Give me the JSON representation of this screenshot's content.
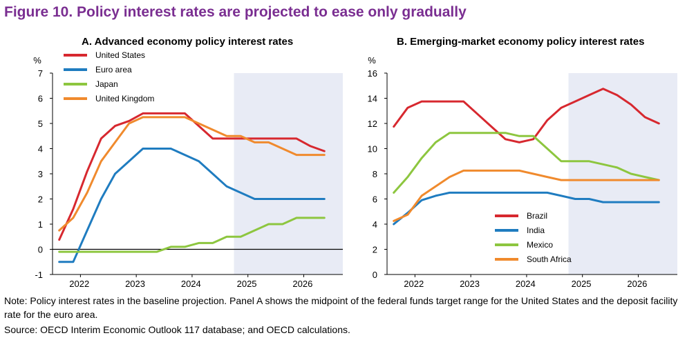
{
  "figure": {
    "title": "Figure 10. Policy interest rates are projected to ease only gradually",
    "note": "Note: Policy interest rates in the baseline projection. Panel A shows the midpoint of the federal funds target range for the United States and the deposit facility rate for the euro area.",
    "source": "Source: OECD Interim Economic Outlook 117 database; and OECD calculations."
  },
  "colors": {
    "red": "#d7282f",
    "blue": "#1f7cc0",
    "green": "#8dc63f",
    "orange": "#f08a2d",
    "projection_shade": "#e8ebf5",
    "axis": "#000000",
    "title": "#7a2e91"
  },
  "chart_data": [
    {
      "type": "line",
      "title": "A. Advanced economy policy interest rates",
      "ylabel": "%",
      "ylim": [
        -1,
        7
      ],
      "yticks": [
        -1,
        0,
        1,
        2,
        3,
        4,
        5,
        6,
        7
      ],
      "xlim": [
        2021.5,
        2026.7
      ],
      "xticks": [
        2022,
        2023,
        2024,
        2025,
        2026
      ],
      "projection_start": 2024.75,
      "zero_line": true,
      "legend_position": "top-left",
      "series": [
        {
          "name": "United States",
          "color": "#d7282f",
          "x": [
            2021.62,
            2021.87,
            2022.12,
            2022.37,
            2022.62,
            2022.87,
            2023.12,
            2023.37,
            2023.62,
            2023.87,
            2024.12,
            2024.37,
            2024.62,
            2024.87,
            2025.12,
            2025.37,
            2025.62,
            2025.87,
            2026.12,
            2026.37
          ],
          "values": [
            0.38,
            1.6,
            3.1,
            4.4,
            4.9,
            5.1,
            5.4,
            5.4,
            5.4,
            5.4,
            4.9,
            4.4,
            4.4,
            4.4,
            4.4,
            4.4,
            4.4,
            4.4,
            4.1,
            3.9
          ]
        },
        {
          "name": "Euro area",
          "color": "#1f7cc0",
          "x": [
            2021.62,
            2021.87,
            2022.12,
            2022.37,
            2022.62,
            2022.87,
            2023.12,
            2023.37,
            2023.62,
            2023.87,
            2024.12,
            2024.37,
            2024.62,
            2024.87,
            2025.12,
            2025.37,
            2025.62,
            2025.87,
            2026.12,
            2026.37
          ],
          "values": [
            -0.5,
            -0.5,
            0.75,
            2.0,
            3.0,
            3.5,
            4.0,
            4.0,
            4.0,
            3.75,
            3.5,
            3.0,
            2.5,
            2.25,
            2.0,
            2.0,
            2.0,
            2.0,
            2.0,
            2.0
          ]
        },
        {
          "name": "Japan",
          "color": "#8dc63f",
          "x": [
            2021.62,
            2021.87,
            2022.12,
            2022.37,
            2022.62,
            2022.87,
            2023.12,
            2023.37,
            2023.62,
            2023.87,
            2024.12,
            2024.37,
            2024.62,
            2024.87,
            2025.12,
            2025.37,
            2025.62,
            2025.87,
            2026.12,
            2026.37
          ],
          "values": [
            -0.1,
            -0.1,
            -0.1,
            -0.1,
            -0.1,
            -0.1,
            -0.1,
            -0.1,
            0.1,
            0.1,
            0.25,
            0.25,
            0.5,
            0.5,
            0.75,
            1.0,
            1.0,
            1.25,
            1.25,
            1.25
          ]
        },
        {
          "name": "United Kingdom",
          "color": "#f08a2d",
          "x": [
            2021.62,
            2021.87,
            2022.12,
            2022.37,
            2022.62,
            2022.87,
            2023.12,
            2023.37,
            2023.62,
            2023.87,
            2024.12,
            2024.37,
            2024.62,
            2024.87,
            2025.12,
            2025.37,
            2025.62,
            2025.87,
            2026.12,
            2026.37
          ],
          "values": [
            0.75,
            1.25,
            2.25,
            3.5,
            4.25,
            5.0,
            5.25,
            5.25,
            5.25,
            5.25,
            5.0,
            4.75,
            4.5,
            4.5,
            4.25,
            4.25,
            4.0,
            3.75,
            3.75,
            3.75
          ]
        }
      ]
    },
    {
      "type": "line",
      "title": "B. Emerging-market economy policy interest rates",
      "ylabel": "%",
      "ylim": [
        0,
        16
      ],
      "yticks": [
        0,
        2,
        4,
        6,
        8,
        10,
        12,
        14,
        16
      ],
      "xlim": [
        2021.5,
        2026.7
      ],
      "xticks": [
        2022,
        2023,
        2024,
        2025,
        2026
      ],
      "projection_start": 2024.75,
      "zero_line": false,
      "legend_position": "bottom-right",
      "series": [
        {
          "name": "Brazil",
          "color": "#d7282f",
          "x": [
            2021.62,
            2021.87,
            2022.12,
            2022.37,
            2022.62,
            2022.87,
            2023.12,
            2023.37,
            2023.62,
            2023.87,
            2024.12,
            2024.37,
            2024.62,
            2024.87,
            2025.12,
            2025.37,
            2025.62,
            2025.87,
            2026.12,
            2026.37
          ],
          "values": [
            11.75,
            13.25,
            13.75,
            13.75,
            13.75,
            13.75,
            12.75,
            11.75,
            10.75,
            10.5,
            10.75,
            12.25,
            13.25,
            13.75,
            14.25,
            14.75,
            14.25,
            13.5,
            12.5,
            12.0
          ]
        },
        {
          "name": "India",
          "color": "#1f7cc0",
          "x": [
            2021.62,
            2021.87,
            2022.12,
            2022.37,
            2022.62,
            2022.87,
            2023.12,
            2023.37,
            2023.62,
            2023.87,
            2024.12,
            2024.37,
            2024.62,
            2024.87,
            2025.12,
            2025.37,
            2025.62,
            2025.87,
            2026.12,
            2026.37
          ],
          "values": [
            4.0,
            4.9,
            5.9,
            6.25,
            6.5,
            6.5,
            6.5,
            6.5,
            6.5,
            6.5,
            6.5,
            6.5,
            6.25,
            6.0,
            6.0,
            5.75,
            5.75,
            5.75,
            5.75,
            5.75
          ]
        },
        {
          "name": "Mexico",
          "color": "#8dc63f",
          "x": [
            2021.62,
            2021.87,
            2022.12,
            2022.37,
            2022.62,
            2022.87,
            2023.12,
            2023.37,
            2023.62,
            2023.87,
            2024.12,
            2024.37,
            2024.62,
            2024.87,
            2025.12,
            2025.37,
            2025.62,
            2025.87,
            2026.12,
            2026.37
          ],
          "values": [
            6.5,
            7.75,
            9.25,
            10.5,
            11.25,
            11.25,
            11.25,
            11.25,
            11.25,
            11.0,
            11.0,
            10.0,
            9.0,
            9.0,
            9.0,
            8.75,
            8.5,
            8.0,
            7.75,
            7.5
          ]
        },
        {
          "name": "South Africa",
          "color": "#f08a2d",
          "x": [
            2021.62,
            2021.87,
            2022.12,
            2022.37,
            2022.62,
            2022.87,
            2023.12,
            2023.37,
            2023.62,
            2023.87,
            2024.12,
            2024.37,
            2024.62,
            2024.87,
            2025.12,
            2025.37,
            2025.62,
            2025.87,
            2026.12,
            2026.37
          ],
          "values": [
            4.25,
            4.75,
            6.25,
            7.0,
            7.75,
            8.25,
            8.25,
            8.25,
            8.25,
            8.25,
            8.0,
            7.75,
            7.5,
            7.5,
            7.5,
            7.5,
            7.5,
            7.5,
            7.5,
            7.5
          ]
        }
      ]
    }
  ]
}
